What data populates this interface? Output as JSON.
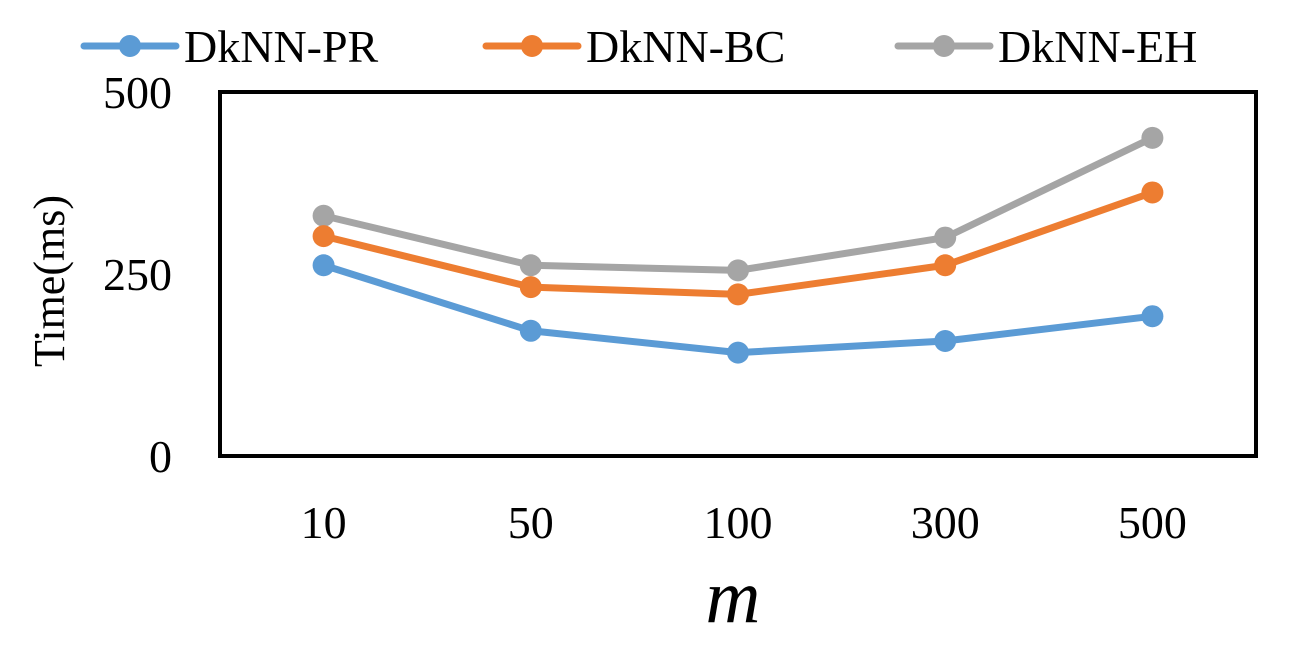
{
  "chart_data": {
    "type": "line",
    "title": "",
    "xlabel": "m",
    "ylabel": "Time(ms)",
    "categories": [
      "10",
      "50",
      "100",
      "300",
      "500"
    ],
    "ylim": [
      0,
      500
    ],
    "yticks": [
      0,
      250,
      500
    ],
    "grid": false,
    "legend_position": "top",
    "series": [
      {
        "name": "DkNN-PR",
        "color": "#5b9bd5",
        "values": [
          262,
          172,
          142,
          158,
          192
        ]
      },
      {
        "name": "DkNN-BC",
        "color": "#ed7d31",
        "values": [
          302,
          232,
          222,
          262,
          362
        ]
      },
      {
        "name": "DkNN-EH",
        "color": "#a5a5a5",
        "values": [
          330,
          262,
          255,
          300,
          437
        ]
      }
    ]
  }
}
